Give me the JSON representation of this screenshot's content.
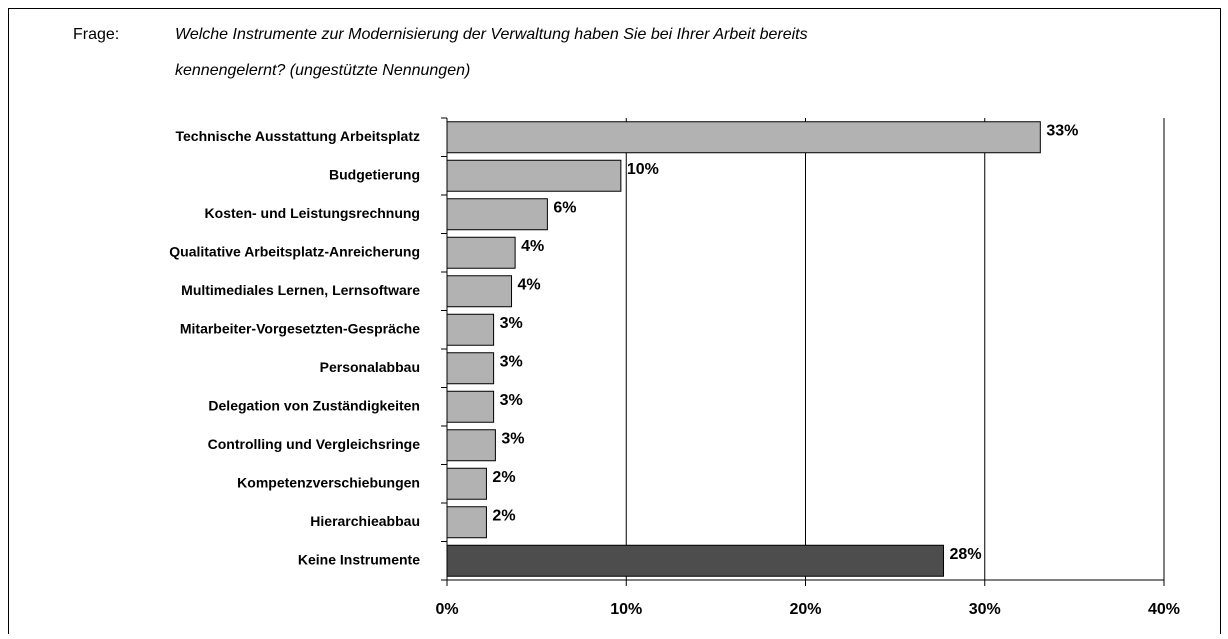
{
  "chart_data": {
    "type": "barh",
    "question_label": "Frage:",
    "title": [
      "Welche Instrumente zur Modernisierung der Verwaltung haben Sie bei Ihrer Arbeit bereits",
      "kennengelernt? (ungestützte Nennungen)"
    ],
    "categories": [
      "Technische Ausstattung Arbeitsplatz",
      "Budgetierung",
      "Kosten- und Leistungsrechnung",
      "Qualitative Arbeitsplatz-Anreicherung",
      "Multimediales Lernen, Lernsoftware",
      "Mitarbeiter-Vorgesetzten-Gespräche",
      "Personalabbau",
      "Delegation von Zuständigkeiten",
      "Controlling und Vergleichsringe",
      "Kompetenzverschiebungen",
      "Hierarchieabbau",
      "Keine Instrumente"
    ],
    "values": [
      33.1,
      9.7,
      5.6,
      3.8,
      3.6,
      2.6,
      2.6,
      2.6,
      2.7,
      2.2,
      2.2,
      27.7
    ],
    "value_labels": [
      "33%",
      "10%",
      "6%",
      "4%",
      "4%",
      "3%",
      "3%",
      "3%",
      "3%",
      "2%",
      "2%",
      "28%"
    ],
    "colors": [
      "#b2b2b2",
      "#b2b2b2",
      "#b2b2b2",
      "#b2b2b2",
      "#b2b2b2",
      "#b2b2b2",
      "#b2b2b2",
      "#b2b2b2",
      "#b2b2b2",
      "#b2b2b2",
      "#b2b2b2",
      "#4d4d4d"
    ],
    "xlim": [
      0,
      40
    ],
    "xticks": [
      {
        "value": 0,
        "label": "0%"
      },
      {
        "value": 10,
        "label": "10%"
      },
      {
        "value": 20,
        "label": "20%"
      },
      {
        "value": 30,
        "label": "30%"
      },
      {
        "value": 40,
        "label": "40%"
      }
    ],
    "grid": true
  }
}
